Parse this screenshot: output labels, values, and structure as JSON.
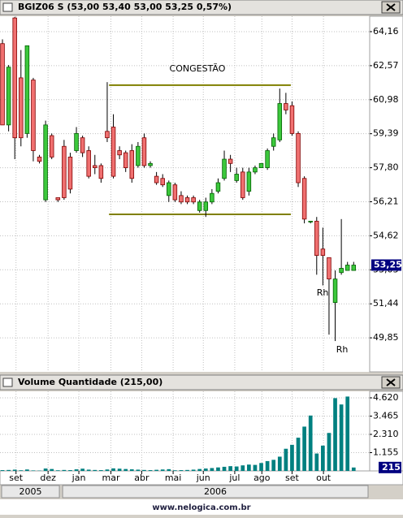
{
  "chart_data": [
    {
      "type": "candlestick",
      "title": "BGIZ06 S (53,00 53,40 53,00 53,25 0,57%)",
      "x": [
        0,
        1,
        2,
        3,
        4,
        5,
        6,
        7,
        8,
        9,
        10,
        11,
        12,
        13,
        14,
        15,
        16,
        17,
        18,
        19,
        20,
        21,
        22,
        23,
        24,
        25,
        26,
        27,
        28,
        29,
        30,
        31,
        32,
        33,
        34,
        35,
        36,
        37,
        38,
        39,
        40,
        41,
        42,
        43,
        44,
        45,
        46,
        47,
        48,
        49,
        50,
        51,
        52,
        53,
        54,
        55,
        56,
        57
      ],
      "open": [
        63.6,
        59.8,
        64.8,
        62.0,
        59.4,
        61.9,
        58.3,
        56.3,
        59.3,
        56.4,
        58.8,
        58.3,
        58.6,
        59.2,
        58.6,
        57.9,
        57.9,
        59.5,
        59.7,
        58.6,
        58.5,
        58.6,
        57.9,
        59.2,
        57.9,
        57.4,
        57.3,
        56.5,
        57.0,
        56.5,
        56.4,
        56.4,
        55.8,
        55.8,
        56.2,
        56.7,
        57.3,
        58.2,
        57.2,
        57.6,
        56.7,
        57.6,
        57.8,
        57.8,
        58.8,
        59.1,
        60.8,
        60.7,
        59.4,
        57.3,
        55.3,
        55.3,
        54.0,
        53.6,
        51.5,
        52.9,
        53.0,
        53.0
      ],
      "high": [
        63.8,
        62.6,
        64.85,
        63.3,
        63.5,
        62.0,
        58.4,
        60.0,
        59.4,
        56.4,
        59.1,
        58.5,
        59.7,
        59.3,
        58.8,
        58.4,
        58.0,
        61.8,
        60.3,
        58.8,
        58.6,
        58.9,
        59.0,
        59.4,
        58.1,
        57.6,
        57.5,
        57.2,
        57.1,
        56.7,
        56.5,
        56.5,
        56.3,
        56.4,
        56.8,
        57.3,
        58.6,
        58.4,
        57.8,
        57.8,
        57.8,
        57.9,
        58.0,
        58.7,
        59.4,
        61.5,
        61.3,
        60.9,
        59.5,
        57.4,
        55.3,
        55.5,
        55.0,
        53.6,
        53.0,
        55.4,
        53.4,
        53.4
      ],
      "low": [
        59.8,
        59.5,
        58.2,
        58.8,
        59.2,
        58.1,
        58.0,
        56.2,
        58.2,
        56.2,
        56.3,
        56.6,
        58.5,
        58.3,
        57.3,
        57.5,
        57.1,
        59.0,
        57.3,
        58.2,
        57.6,
        57.1,
        57.8,
        57.8,
        57.8,
        57.0,
        56.9,
        56.2,
        56.2,
        56.1,
        56.1,
        56.1,
        55.7,
        55.5,
        56.1,
        56.6,
        57.2,
        57.6,
        57.1,
        56.3,
        56.5,
        57.5,
        57.8,
        57.7,
        58.6,
        59.0,
        60.3,
        59.3,
        56.9,
        55.2,
        55.2,
        52.8,
        52.3,
        50.0,
        49.7,
        52.8,
        53.0,
        53.0
      ],
      "close": [
        59.8,
        62.5,
        59.2,
        59.2,
        63.5,
        58.6,
        58.1,
        59.8,
        58.3,
        56.3,
        56.4,
        56.8,
        59.4,
        58.5,
        57.4,
        57.8,
        57.3,
        59.2,
        57.4,
        58.4,
        57.8,
        57.3,
        58.8,
        57.9,
        58.0,
        57.1,
        57.0,
        57.1,
        56.3,
        56.2,
        56.2,
        56.2,
        56.2,
        56.2,
        56.6,
        57.1,
        58.2,
        58.0,
        57.5,
        56.4,
        57.6,
        57.8,
        58.0,
        58.6,
        59.2,
        60.8,
        60.5,
        59.4,
        57.1,
        55.4,
        55.3,
        53.7,
        53.7,
        52.6,
        52.6,
        53.1,
        53.25,
        53.25
      ],
      "up_color": "#3cc83c",
      "down_color": "#f07070",
      "ylim": [
        48.26,
        64.88
      ],
      "yticks": [
        {
          "value": 49.85,
          "label": "49,85"
        },
        {
          "value": 51.44,
          "label": "51,44"
        },
        {
          "value": 53.03,
          "label": "53,03"
        },
        {
          "value": 54.62,
          "label": "54,62"
        },
        {
          "value": 56.21,
          "label": "56,21"
        },
        {
          "value": 57.8,
          "label": "57,80"
        },
        {
          "value": 59.39,
          "label": "59,39"
        },
        {
          "value": 60.98,
          "label": "60,98"
        },
        {
          "value": 62.57,
          "label": "62,57"
        },
        {
          "value": 64.16,
          "label": "64,16"
        }
      ],
      "last_price": {
        "value": 53.25,
        "label": "53,25"
      },
      "annotations": [
        "CONGESTÃO",
        "Rh",
        "Rh"
      ],
      "trend_lines": [
        {
          "x": [
            17.3,
            46.8
          ],
          "y": [
            61.66,
            61.66
          ]
        },
        {
          "x": [
            17.3,
            46.8
          ],
          "y": [
            55.62,
            55.62
          ]
        }
      ],
      "line_color": "#808000",
      "grid": true,
      "xlim": [
        -0.4,
        59.6
      ],
      "xticks": [
        {
          "value": 2.2,
          "label": "set"
        },
        {
          "value": 7.4,
          "label": "dez"
        },
        {
          "value": 12.4,
          "label": "jan"
        },
        {
          "value": 17.6,
          "label": "mar"
        },
        {
          "value": 22.6,
          "label": "abr"
        },
        {
          "value": 27.7,
          "label": "mai"
        },
        {
          "value": 32.6,
          "label": "jun"
        },
        {
          "value": 37.7,
          "label": "jul"
        },
        {
          "value": 42.1,
          "label": "ago"
        },
        {
          "value": 47,
          "label": "set"
        },
        {
          "value": 52.1,
          "label": "out"
        }
      ],
      "year_starts": [
        {
          "value": -0.4,
          "label": "2005"
        },
        {
          "value": 9.5,
          "label": "2006"
        }
      ]
    },
    {
      "type": "bar",
      "title": "Volume Quantidade (215,00)",
      "values": [
        50,
        60,
        80,
        40,
        90,
        30,
        20,
        150,
        120,
        40,
        60,
        50,
        100,
        140,
        80,
        60,
        50,
        90,
        160,
        140,
        120,
        100,
        80,
        60,
        50,
        70,
        90,
        110,
        40,
        50,
        60,
        80,
        120,
        150,
        180,
        220,
        260,
        300,
        280,
        350,
        400,
        380,
        500,
        620,
        700,
        900,
        1400,
        1650,
        2100,
        2800,
        3500,
        1100,
        1600,
        2400,
        4600,
        4200,
        4700,
        215
      ],
      "color": "#008080",
      "ylim": [
        0,
        5030
      ],
      "yticks": [
        {
          "value": 1155,
          "label": "1.155"
        },
        {
          "value": 2310,
          "label": "2.310"
        },
        {
          "value": 3465,
          "label": "3.465"
        },
        {
          "value": 4620,
          "label": "4.620"
        }
      ],
      "last_value": 215,
      "grid": true
    }
  ],
  "footer": "www.nelogica.com.br"
}
